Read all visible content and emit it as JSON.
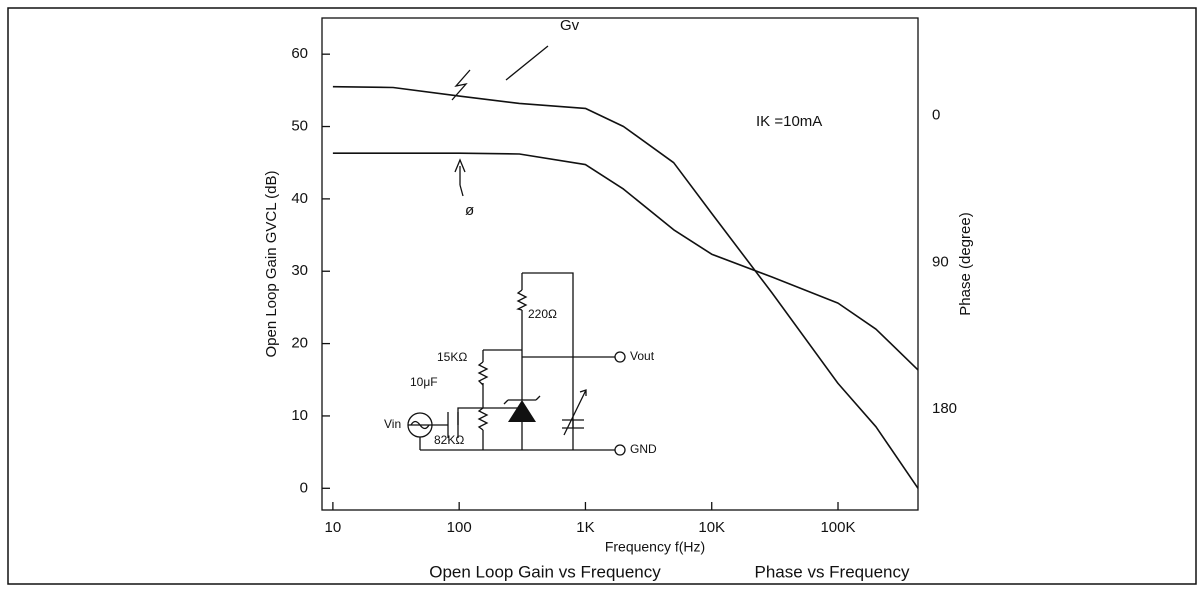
{
  "chart_data": {
    "type": "line",
    "title": "Open Loop Gain vs Frequency",
    "subtitle": "Phase vs Frequency",
    "x_label": "Frequency f(Hz)",
    "y_label": "Open Loop Gain GVCL (dB)",
    "y2_label": "Phase (degree)",
    "annotations": [
      "IK =10mA"
    ],
    "circuit_labels": [
      "220Ω",
      "15KΩ",
      "Vout",
      "10μF",
      "Vin",
      "82KΩ",
      "GND"
    ],
    "log_x": true,
    "grid": false,
    "x": [
      10,
      30,
      100,
      300,
      1000,
      2000,
      5000,
      10000,
      30000,
      100000,
      200000,
      430000
    ],
    "series": [
      {
        "name": "Gv",
        "color": "#111111",
        "values": [
          55.5,
          55.4,
          54.2,
          53.2,
          52.5,
          50,
          45,
          38,
          27,
          14.5,
          8.5,
          0
        ]
      },
      {
        "name": "ø",
        "color": "#111111",
        "axis": "y2",
        "values": [
          23,
          23,
          23,
          23.5,
          30,
          45,
          70,
          85,
          99,
          115,
          131,
          156
        ]
      }
    ],
    "xlim": [
      8.2,
      430000
    ],
    "xticks": [
      10,
      100,
      {
        "value": 1000,
        "label": "1K"
      },
      {
        "value": 10000,
        "label": "10K"
      },
      {
        "value": 100000,
        "label": "100K"
      }
    ],
    "ylim": [
      -3,
      65
    ],
    "yticks": [
      0,
      10,
      20,
      30,
      40,
      50,
      60
    ],
    "y2lim": [
      242,
      -60
    ],
    "y2ticks": [
      0,
      90,
      180
    ]
  }
}
